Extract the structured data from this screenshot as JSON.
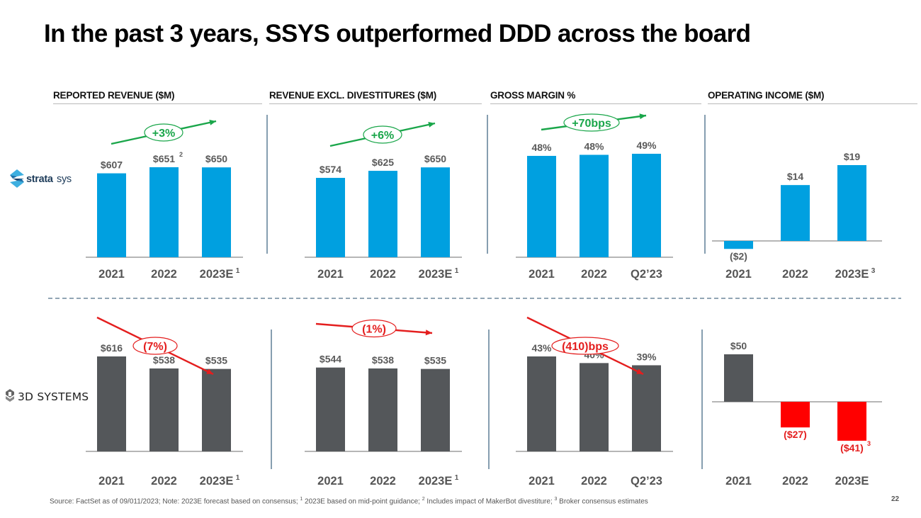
{
  "title": "In the past 3 years, SSYS outperformed DDD across the board",
  "panel_headers": [
    "REPORTED REVENUE ($M)",
    "REVENUE EXCL. DIVESTITURES ($M)",
    "GROSS MARGIN %",
    "OPERATING INCOME ($M)"
  ],
  "companies": [
    {
      "name": "stratasys",
      "ticker": "SSYS",
      "logo_icon": "stratasys-logo-icon",
      "color": "#00a0e0"
    },
    {
      "name": "3D SYSTEMS",
      "ticker": "DDD",
      "logo_icon": "3d-systems-logo-icon",
      "color": "#54575a"
    }
  ],
  "colors": {
    "ssys_bar": "#00a0e0",
    "ddd_bar": "#54575a",
    "ddd_negative_bar": "#ff0000",
    "positive_annotation": "#1aa64a",
    "negative_annotation": "#e41e1e",
    "label_text": "#5a5a5a"
  },
  "chart_data": [
    {
      "type": "bar",
      "row": "stratasys",
      "title": "REPORTED REVENUE ($M)",
      "categories": [
        "2021",
        "2022",
        "2023E"
      ],
      "category_superscripts": [
        "",
        "",
        "1"
      ],
      "values": [
        607,
        651,
        650
      ],
      "labels": [
        "$607",
        "$651",
        "$650"
      ],
      "label_superscripts": [
        "",
        "2",
        ""
      ],
      "ylim": [
        0,
        700
      ],
      "trend": {
        "text": "+3%",
        "direction": "up"
      }
    },
    {
      "type": "bar",
      "row": "stratasys",
      "title": "REVENUE EXCL. DIVESTITURES ($M)",
      "categories": [
        "2021",
        "2022",
        "2023E"
      ],
      "category_superscripts": [
        "",
        "",
        "1"
      ],
      "values": [
        574,
        625,
        650
      ],
      "labels": [
        "$574",
        "$625",
        "$650"
      ],
      "label_superscripts": [
        "",
        "",
        ""
      ],
      "ylim": [
        0,
        700
      ],
      "trend": {
        "text": "+6%",
        "direction": "up"
      }
    },
    {
      "type": "bar",
      "row": "stratasys",
      "title": "GROSS MARGIN %",
      "categories": [
        "2021",
        "2022",
        "Q2’23"
      ],
      "category_superscripts": [
        "",
        "",
        ""
      ],
      "values": [
        48,
        48.5,
        49
      ],
      "labels": [
        "48%",
        "48%",
        "49%"
      ],
      "label_superscripts": [
        "",
        "",
        ""
      ],
      "ylim": [
        0,
        55
      ],
      "trend": {
        "text": "+70bps",
        "direction": "up"
      }
    },
    {
      "type": "bar",
      "row": "stratasys",
      "title": "OPERATING INCOME ($M)",
      "categories": [
        "2021",
        "2022",
        "2023E"
      ],
      "category_superscripts": [
        "",
        "",
        "3"
      ],
      "values": [
        -2,
        14,
        19
      ],
      "labels": [
        "($2)",
        "$14",
        "$19"
      ],
      "label_superscripts": [
        "",
        "",
        ""
      ],
      "ylim": [
        -5,
        25
      ],
      "trend": null
    },
    {
      "type": "bar",
      "row": "3d-systems",
      "title": "REPORTED REVENUE ($M)",
      "categories": [
        "2021",
        "2022",
        "2023E"
      ],
      "category_superscripts": [
        "",
        "",
        "1"
      ],
      "values": [
        616,
        538,
        535
      ],
      "labels": [
        "$616",
        "$538",
        "$535"
      ],
      "label_superscripts": [
        "",
        "",
        ""
      ],
      "ylim": [
        0,
        700
      ],
      "trend": {
        "text": "(7%)",
        "direction": "down"
      }
    },
    {
      "type": "bar",
      "row": "3d-systems",
      "title": "REVENUE EXCL. DIVESTITURES ($M)",
      "categories": [
        "2021",
        "2022",
        "2023E"
      ],
      "category_superscripts": [
        "",
        "",
        "1"
      ],
      "values": [
        544,
        538,
        535
      ],
      "labels": [
        "$544",
        "$538",
        "$535"
      ],
      "label_superscripts": [
        "",
        "",
        ""
      ],
      "ylim": [
        0,
        700
      ],
      "trend": {
        "text": "(1%)",
        "direction": "down"
      }
    },
    {
      "type": "bar",
      "row": "3d-systems",
      "title": "GROSS MARGIN %",
      "categories": [
        "2021",
        "2022",
        "Q2’23"
      ],
      "category_superscripts": [
        "",
        "",
        ""
      ],
      "values": [
        43,
        40,
        39
      ],
      "labels": [
        "43%",
        "40%",
        "39%"
      ],
      "label_superscripts": [
        "",
        "",
        ""
      ],
      "ylim": [
        0,
        55
      ],
      "trend": {
        "text": "(410)bps",
        "direction": "down"
      }
    },
    {
      "type": "bar",
      "row": "3d-systems",
      "title": "OPERATING INCOME ($M)",
      "categories": [
        "2021",
        "2022",
        "2023E"
      ],
      "category_superscripts": [
        "",
        "",
        ""
      ],
      "values": [
        50,
        -27,
        -41
      ],
      "labels": [
        "$50",
        "($27)",
        "($41)"
      ],
      "label_superscripts": [
        "",
        "",
        "3"
      ],
      "ylim": [
        -45,
        55
      ],
      "trend": null
    }
  ],
  "footer": {
    "source": "Source: FactSet as of 09/011/2023; Note: 2023E forecast based on consensus; ",
    "note1_sup": "1",
    "note1": " 2023E based on mid-point guidance; ",
    "note2_sup": "2",
    "note2": " Includes impact of MakerBot divestiture; ",
    "note3_sup": "3",
    "note3": "  Broker consensus estimates"
  },
  "page_number": "22"
}
